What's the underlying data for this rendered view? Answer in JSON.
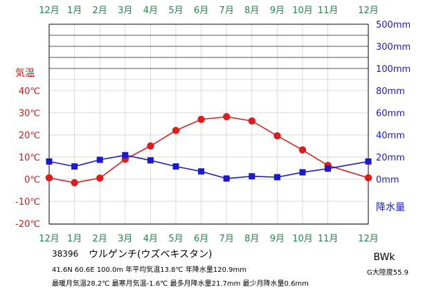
{
  "chart_data": {
    "type": "line",
    "categories": [
      "12月",
      "1月",
      "2月",
      "3月",
      "4月",
      "5月",
      "6月",
      "7月",
      "8月",
      "9月",
      "10月",
      "11月",
      "12月"
    ],
    "series": [
      {
        "name": "気温",
        "unit": "℃",
        "color": "#dd1c1c",
        "values": [
          0.6,
          -1.6,
          0.5,
          9.0,
          15.0,
          22.0,
          27.0,
          28.2,
          26.3,
          19.6,
          13.2,
          6.2,
          0.6
        ]
      },
      {
        "name": "降水量",
        "unit": "mm",
        "color": "#1a1acc",
        "values": [
          16.0,
          11.5,
          17.5,
          21.7,
          17.0,
          11.5,
          7.0,
          0.6,
          2.6,
          1.8,
          6.2,
          9.5,
          16.0
        ]
      }
    ],
    "y_left": {
      "label": "気温",
      "ylim": [
        -20,
        40
      ],
      "ticks": [
        "40℃",
        "30℃",
        "20℃",
        "10℃",
        "0℃",
        "-10℃",
        "-20℃"
      ]
    },
    "y_right": {
      "label": "降水量",
      "ylim": [
        0,
        80
      ],
      "ticks": [
        "80mm",
        "60mm",
        "40mm",
        "20mm",
        "0mm"
      ],
      "extended_ticks": [
        "500mm",
        "300mm",
        "100mm"
      ]
    },
    "grid": true,
    "legend": "none"
  },
  "info": {
    "station": "38396",
    "city": "ウルゲンチ(ウズベキスタン)",
    "line1": "41.6N  60.6E  100.0m  年平均気温13.8℃  年降水量120.9mm",
    "line2": "最暖月気温28.2℃ 最寒月気温-1.6℃ 最多月降水量21.7mm 最少月降水量0.6mm",
    "climate": "BWk",
    "continentality": "G大陸度55.9"
  }
}
